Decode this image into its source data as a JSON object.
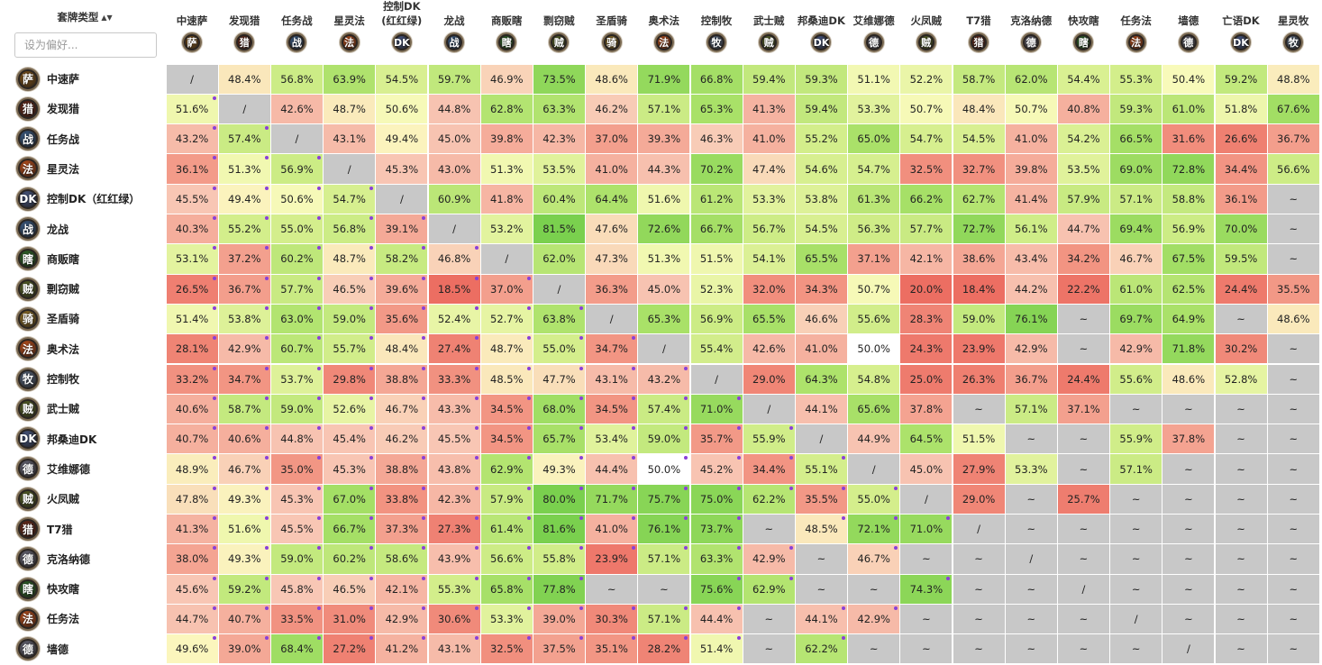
{
  "header": {
    "column_title": "套牌类型",
    "sort_icon": "sort-icon",
    "search_placeholder": "设为偏好..."
  },
  "columns": [
    {
      "name": "中速萨",
      "icon": "shaman-icon",
      "color": "#8a5a1c",
      "glyph": "萨"
    },
    {
      "name": "发现猎",
      "icon": "hunter-icon",
      "color": "#6b2a1a",
      "glyph": "猎"
    },
    {
      "name": "任务战",
      "icon": "warrior-icon",
      "color": "#3b5c86",
      "glyph": "战"
    },
    {
      "name": "星灵法",
      "icon": "mage-icon",
      "color": "#c2521c",
      "glyph": "法"
    },
    {
      "name": "控制DK\n(红红绿)",
      "icon": "death-knight-icon",
      "color": "#4a5a86",
      "glyph": "DK"
    },
    {
      "name": "龙战",
      "icon": "warrior-icon",
      "color": "#3b5c86",
      "glyph": "战"
    },
    {
      "name": "商贩瞎",
      "icon": "demon-hunter-icon",
      "color": "#2f6a2a",
      "glyph": "瞎"
    },
    {
      "name": "剽窃贼",
      "icon": "rogue-icon",
      "color": "#5d6a2a",
      "glyph": "贼"
    },
    {
      "name": "圣盾骑",
      "icon": "paladin-icon",
      "color": "#9c7a2a",
      "glyph": "骑"
    },
    {
      "name": "奥术法",
      "icon": "mage-icon",
      "color": "#c2521c",
      "glyph": "法"
    },
    {
      "name": "控制牧",
      "icon": "priest-icon",
      "color": "#5a6a82",
      "glyph": "牧"
    },
    {
      "name": "武士贼",
      "icon": "rogue-icon",
      "color": "#5d6a2a",
      "glyph": "贼"
    },
    {
      "name": "邦桑迪DK",
      "icon": "death-knight-icon",
      "color": "#4a5a86",
      "glyph": "DK"
    },
    {
      "name": "艾维娜德",
      "icon": "druid-icon",
      "color": "#6a6a7a",
      "glyph": "德"
    },
    {
      "name": "火凤贼",
      "icon": "rogue-icon",
      "color": "#5d6a2a",
      "glyph": "贼"
    },
    {
      "name": "T7猎",
      "icon": "hunter-icon",
      "color": "#6b2a1a",
      "glyph": "猎"
    },
    {
      "name": "克洛纳德",
      "icon": "druid-icon",
      "color": "#6a6a7a",
      "glyph": "德"
    },
    {
      "name": "快攻瞎",
      "icon": "demon-hunter-icon",
      "color": "#2f6a2a",
      "glyph": "瞎"
    },
    {
      "name": "任务法",
      "icon": "mage-icon",
      "color": "#c2521c",
      "glyph": "法"
    },
    {
      "name": "墙德",
      "icon": "druid-icon",
      "color": "#6a6a7a",
      "glyph": "德"
    },
    {
      "name": "亡语DK",
      "icon": "death-knight-icon",
      "color": "#4a5a86",
      "glyph": "DK"
    },
    {
      "name": "星灵牧",
      "icon": "priest-icon",
      "color": "#5a6a82",
      "glyph": "牧"
    }
  ],
  "rows": [
    {
      "name": "中速萨",
      "icon": "shaman-icon",
      "color": "#8a5a1c",
      "glyph": "萨",
      "cells": [
        "/",
        "48.4%",
        "56.8%",
        "63.9%",
        "54.5%",
        "59.7%",
        "46.9%",
        "73.5%",
        "48.6%",
        "71.9%",
        "66.8%",
        "59.4%",
        "59.3%",
        "51.1%",
        "52.2%",
        "58.7%",
        "62.0%",
        "54.4%",
        "55.3%",
        "50.4%",
        "59.2%",
        "48.8%"
      ]
    },
    {
      "name": "发现猎",
      "icon": "hunter-icon",
      "color": "#6b2a1a",
      "glyph": "猎",
      "cells": [
        "51.6%",
        "/",
        "42.6%",
        "48.7%",
        "50.6%",
        "44.8%",
        "62.8%",
        "63.3%",
        "46.2%",
        "57.1%",
        "65.3%",
        "41.3%",
        "59.4%",
        "53.3%",
        "50.7%",
        "48.4%",
        "50.7%",
        "40.8%",
        "59.3%",
        "61.0%",
        "51.8%",
        "67.6%"
      ]
    },
    {
      "name": "任务战",
      "icon": "warrior-icon",
      "color": "#3b5c86",
      "glyph": "战",
      "cells": [
        "43.2%",
        "57.4%",
        "/",
        "43.1%",
        "49.4%",
        "45.0%",
        "39.8%",
        "42.3%",
        "37.0%",
        "39.3%",
        "46.3%",
        "41.0%",
        "55.2%",
        "65.0%",
        "54.7%",
        "54.5%",
        "41.0%",
        "54.2%",
        "66.5%",
        "31.6%",
        "26.6%",
        "36.7%"
      ]
    },
    {
      "name": "星灵法",
      "icon": "mage-icon",
      "color": "#c2521c",
      "glyph": "法",
      "cells": [
        "36.1%",
        "51.3%",
        "56.9%",
        "/",
        "45.3%",
        "43.0%",
        "51.3%",
        "53.5%",
        "41.0%",
        "44.3%",
        "70.2%",
        "47.4%",
        "54.6%",
        "54.7%",
        "32.5%",
        "32.7%",
        "39.8%",
        "53.5%",
        "69.0%",
        "72.8%",
        "34.4%",
        "56.6%"
      ]
    },
    {
      "name": "控制DK（红红绿）",
      "icon": "death-knight-icon",
      "color": "#4a5a86",
      "glyph": "DK",
      "cells": [
        "45.5%",
        "49.4%",
        "50.6%",
        "54.7%",
        "/",
        "60.9%",
        "41.8%",
        "60.4%",
        "64.4%",
        "51.6%",
        "61.2%",
        "53.3%",
        "53.8%",
        "61.3%",
        "66.2%",
        "62.7%",
        "41.4%",
        "57.9%",
        "57.1%",
        "58.8%",
        "36.1%",
        "~"
      ]
    },
    {
      "name": "龙战",
      "icon": "warrior-icon",
      "color": "#3b5c86",
      "glyph": "战",
      "cells": [
        "40.3%",
        "55.2%",
        "55.0%",
        "56.8%",
        "39.1%",
        "/",
        "53.2%",
        "81.5%",
        "47.6%",
        "72.6%",
        "66.7%",
        "56.7%",
        "54.5%",
        "56.3%",
        "57.7%",
        "72.7%",
        "56.1%",
        "44.7%",
        "69.4%",
        "56.9%",
        "70.0%",
        "~"
      ]
    },
    {
      "name": "商贩瞎",
      "icon": "demon-hunter-icon",
      "color": "#2f6a2a",
      "glyph": "瞎",
      "cells": [
        "53.1%",
        "37.2%",
        "60.2%",
        "48.7%",
        "58.2%",
        "46.8%",
        "/",
        "62.0%",
        "47.3%",
        "51.3%",
        "51.5%",
        "54.1%",
        "65.5%",
        "37.1%",
        "42.1%",
        "38.6%",
        "43.4%",
        "34.2%",
        "46.7%",
        "67.5%",
        "59.5%",
        "~"
      ]
    },
    {
      "name": "剽窃贼",
      "icon": "rogue-icon",
      "color": "#5d6a2a",
      "glyph": "贼",
      "cells": [
        "26.5%",
        "36.7%",
        "57.7%",
        "46.5%",
        "39.6%",
        "18.5%",
        "37.0%",
        "/",
        "36.3%",
        "45.0%",
        "52.3%",
        "32.0%",
        "34.3%",
        "50.7%",
        "20.0%",
        "18.4%",
        "44.2%",
        "22.2%",
        "61.0%",
        "62.5%",
        "24.4%",
        "35.5%"
      ]
    },
    {
      "name": "圣盾骑",
      "icon": "paladin-icon",
      "color": "#9c7a2a",
      "glyph": "骑",
      "cells": [
        "51.4%",
        "53.8%",
        "63.0%",
        "59.0%",
        "35.6%",
        "52.4%",
        "52.7%",
        "63.8%",
        "/",
        "65.3%",
        "56.9%",
        "65.5%",
        "46.6%",
        "55.6%",
        "28.3%",
        "59.0%",
        "76.1%",
        "~",
        "69.7%",
        "64.9%",
        "~",
        "48.6%"
      ]
    },
    {
      "name": "奥术法",
      "icon": "mage-icon",
      "color": "#c2521c",
      "glyph": "法",
      "cells": [
        "28.1%",
        "42.9%",
        "60.7%",
        "55.7%",
        "48.4%",
        "27.4%",
        "48.7%",
        "55.0%",
        "34.7%",
        "/",
        "55.4%",
        "42.6%",
        "41.0%",
        "50.0%",
        "24.3%",
        "23.9%",
        "42.9%",
        "~",
        "42.9%",
        "71.8%",
        "30.2%",
        "~"
      ]
    },
    {
      "name": "控制牧",
      "icon": "priest-icon",
      "color": "#5a6a82",
      "glyph": "牧",
      "cells": [
        "33.2%",
        "34.7%",
        "53.7%",
        "29.8%",
        "38.8%",
        "33.3%",
        "48.5%",
        "47.7%",
        "43.1%",
        "43.2%",
        "/",
        "29.0%",
        "64.3%",
        "54.8%",
        "25.0%",
        "26.3%",
        "36.7%",
        "24.4%",
        "55.6%",
        "48.6%",
        "52.8%",
        "~"
      ]
    },
    {
      "name": "武士贼",
      "icon": "rogue-icon",
      "color": "#5d6a2a",
      "glyph": "贼",
      "cells": [
        "40.6%",
        "58.7%",
        "59.0%",
        "52.6%",
        "46.7%",
        "43.3%",
        "34.5%",
        "68.0%",
        "34.5%",
        "57.4%",
        "71.0%",
        "/",
        "44.1%",
        "65.6%",
        "37.8%",
        "~",
        "57.1%",
        "37.1%",
        "~",
        "~",
        "~",
        "~"
      ]
    },
    {
      "name": "邦桑迪DK",
      "icon": "death-knight-icon",
      "color": "#4a5a86",
      "glyph": "DK",
      "cells": [
        "40.7%",
        "40.6%",
        "44.8%",
        "45.4%",
        "46.2%",
        "45.5%",
        "34.5%",
        "65.7%",
        "53.4%",
        "59.0%",
        "35.7%",
        "55.9%",
        "/",
        "44.9%",
        "64.5%",
        "51.5%",
        "~",
        "~",
        "55.9%",
        "37.8%",
        "~",
        "~"
      ]
    },
    {
      "name": "艾维娜德",
      "icon": "druid-icon",
      "color": "#6a6a7a",
      "glyph": "德",
      "cells": [
        "48.9%",
        "46.7%",
        "35.0%",
        "45.3%",
        "38.8%",
        "43.8%",
        "62.9%",
        "49.3%",
        "44.4%",
        "50.0%",
        "45.2%",
        "34.4%",
        "55.1%",
        "/",
        "45.0%",
        "27.9%",
        "53.3%",
        "~",
        "57.1%",
        "~",
        "~",
        "~"
      ]
    },
    {
      "name": "火凤贼",
      "icon": "rogue-icon",
      "color": "#5d6a2a",
      "glyph": "贼",
      "cells": [
        "47.8%",
        "49.3%",
        "45.3%",
        "67.0%",
        "33.8%",
        "42.3%",
        "57.9%",
        "80.0%",
        "71.7%",
        "75.7%",
        "75.0%",
        "62.2%",
        "35.5%",
        "55.0%",
        "/",
        "29.0%",
        "~",
        "25.7%",
        "~",
        "~",
        "~",
        "~"
      ]
    },
    {
      "name": "T7猎",
      "icon": "hunter-icon",
      "color": "#6b2a1a",
      "glyph": "猎",
      "cells": [
        "41.3%",
        "51.6%",
        "45.5%",
        "66.7%",
        "37.3%",
        "27.3%",
        "61.4%",
        "81.6%",
        "41.0%",
        "76.1%",
        "73.7%",
        "~",
        "48.5%",
        "72.1%",
        "71.0%",
        "/",
        "~",
        "~",
        "~",
        "~",
        "~",
        "~"
      ]
    },
    {
      "name": "克洛纳德",
      "icon": "druid-icon",
      "color": "#6a6a7a",
      "glyph": "德",
      "cells": [
        "38.0%",
        "49.3%",
        "59.0%",
        "60.2%",
        "58.6%",
        "43.9%",
        "56.6%",
        "55.8%",
        "23.9%",
        "57.1%",
        "63.3%",
        "42.9%",
        "~",
        "46.7%",
        "~",
        "~",
        "/",
        "~",
        "~",
        "~",
        "~",
        "~"
      ]
    },
    {
      "name": "快攻瞎",
      "icon": "demon-hunter-icon",
      "color": "#2f6a2a",
      "glyph": "瞎",
      "cells": [
        "45.6%",
        "59.2%",
        "45.8%",
        "46.5%",
        "42.1%",
        "55.3%",
        "65.8%",
        "77.8%",
        "~",
        "~",
        "75.6%",
        "62.9%",
        "~",
        "~",
        "74.3%",
        "~",
        "~",
        "/",
        "~",
        "~",
        "~",
        "~"
      ]
    },
    {
      "name": "任务法",
      "icon": "mage-icon",
      "color": "#c2521c",
      "glyph": "法",
      "cells": [
        "44.7%",
        "40.7%",
        "33.5%",
        "31.0%",
        "42.9%",
        "30.6%",
        "53.3%",
        "39.0%",
        "30.3%",
        "57.1%",
        "44.4%",
        "~",
        "44.1%",
        "42.9%",
        "~",
        "~",
        "~",
        "~",
        "/",
        "~",
        "~",
        "~"
      ]
    },
    {
      "name": "墙德",
      "icon": "druid-icon",
      "color": "#6a6a7a",
      "glyph": "德",
      "cells": [
        "49.6%",
        "39.0%",
        "68.4%",
        "27.2%",
        "41.2%",
        "43.1%",
        "32.5%",
        "37.5%",
        "35.1%",
        "28.2%",
        "51.4%",
        "~",
        "62.2%",
        "~",
        "~",
        "~",
        "~",
        "~",
        "~",
        "/",
        "~",
        "~"
      ]
    }
  ],
  "legend_colors": {
    "diagonal": "#c8c8c8",
    "missing": "#c8c8c8",
    "even": "#ffffff",
    "marker": "#8a3fd9"
  }
}
